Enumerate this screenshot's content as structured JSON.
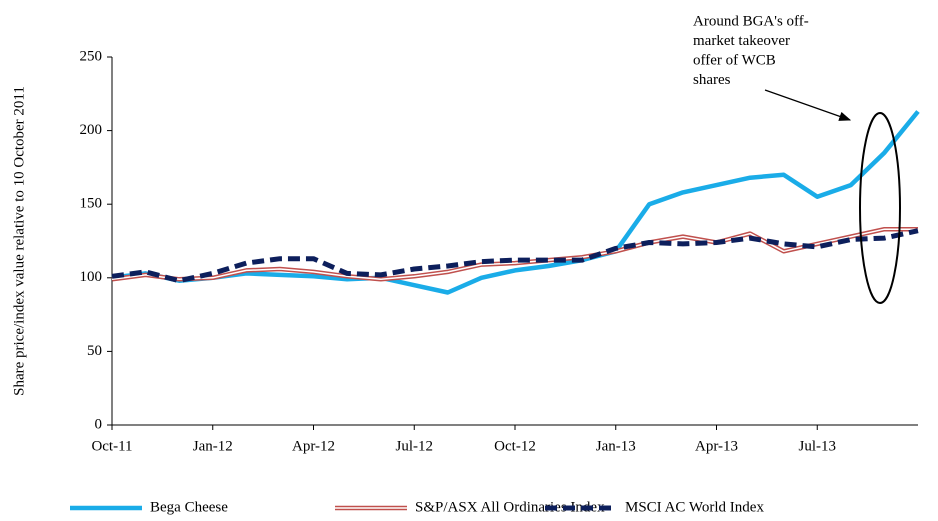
{
  "chart_data": {
    "type": "line",
    "ylabel": "Share price/index value relative to 10 October 2011",
    "categories": [
      "Oct-11",
      null,
      null,
      "Jan-12",
      null,
      null,
      "Apr-12",
      null,
      null,
      "Jul-12",
      null,
      null,
      "Oct-12",
      null,
      null,
      "Jan-13",
      null,
      null,
      "Apr-13",
      null,
      null,
      "Jul-13",
      null,
      null,
      null
    ],
    "series": [
      {
        "name": "Bega Cheese",
        "color": "#1aace8",
        "line_style": "solid",
        "values": [
          100,
          103,
          98,
          100,
          103,
          102,
          101,
          99,
          100,
          95,
          90,
          100,
          105,
          108,
          112,
          118,
          150,
          158,
          163,
          168,
          170,
          155,
          163,
          185,
          213
        ]
      },
      {
        "name": "S&P/ASX All Ordinaries Index",
        "color": "#c0504d",
        "line_style": "double",
        "values": [
          99,
          102,
          99,
          100,
          105,
          106,
          104,
          101,
          99,
          101,
          104,
          109,
          110,
          112,
          114,
          118,
          124,
          128,
          124,
          130,
          118,
          123,
          128,
          133,
          133
        ]
      },
      {
        "name": "MSCI AC World Index",
        "color": "#0d1f5c",
        "line_style": "dashed",
        "values": [
          101,
          104,
          98,
          103,
          110,
          113,
          113,
          103,
          102,
          106,
          108,
          111,
          112,
          112,
          112,
          120,
          124,
          123,
          124,
          127,
          123,
          121,
          126,
          127,
          132
        ]
      }
    ],
    "ylim": [
      0,
      250
    ],
    "yticks": [
      0,
      50,
      100,
      150,
      200,
      250
    ],
    "annotation": [
      "Around BGA's off-",
      "market takeover",
      "offer of WCB",
      "shares"
    ]
  }
}
